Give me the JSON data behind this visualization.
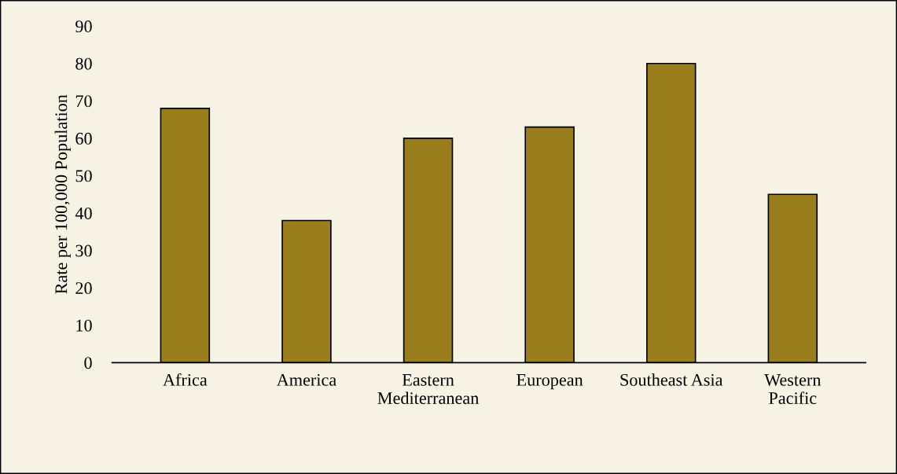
{
  "chart_data": {
    "type": "bar",
    "ylabel": "Rate per 100,000 Population",
    "categories": [
      "Africa",
      "America",
      "Eastern\nMediterranean",
      "European",
      "Southeast Asia",
      "Western\nPacific"
    ],
    "values": [
      68,
      38,
      60,
      63,
      80,
      45
    ],
    "color": "#9a7d1c",
    "ylim": [
      0,
      90
    ],
    "yticks": [
      0,
      10,
      20,
      30,
      40,
      50,
      60,
      70,
      80,
      90
    ],
    "grid": false
  }
}
